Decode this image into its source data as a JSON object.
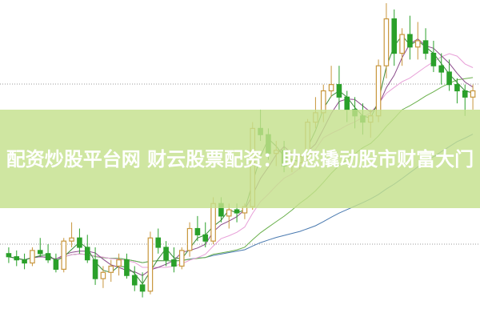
{
  "title": "配资炒股平台网 财云股票配资：助您撬动股市财富大门",
  "colors": {
    "up": "#c8963c",
    "down": "#2aa02a",
    "ma5": "#3a8a3a",
    "ma10": "#8a4a8a",
    "ma20": "#e8a0d8",
    "ma60": "#6ab04c",
    "ma120": "#4a7ab0",
    "grid": "#999999",
    "banner": "#c4e08c"
  },
  "chart_data": {
    "type": "candlestick",
    "grid": true,
    "ylim": [
      0,
      100
    ],
    "candles": [
      [
        20,
        22,
        17,
        19
      ],
      [
        19,
        21,
        16,
        18
      ],
      [
        18,
        20,
        15,
        17
      ],
      [
        17,
        22,
        16,
        21
      ],
      [
        21,
        25,
        19,
        20
      ],
      [
        20,
        23,
        17,
        18
      ],
      [
        18,
        20,
        14,
        15
      ],
      [
        15,
        25,
        14,
        24
      ],
      [
        24,
        30,
        22,
        25
      ],
      [
        25,
        28,
        20,
        22
      ],
      [
        22,
        26,
        17,
        18
      ],
      [
        18,
        22,
        10,
        12
      ],
      [
        12,
        16,
        9,
        14
      ],
      [
        14,
        18,
        11,
        16
      ],
      [
        16,
        20,
        13,
        18
      ],
      [
        18,
        20,
        12,
        13
      ],
      [
        13,
        16,
        8,
        10
      ],
      [
        10,
        14,
        6,
        8
      ],
      [
        8,
        27,
        7,
        25
      ],
      [
        25,
        28,
        20,
        22
      ],
      [
        22,
        24,
        16,
        18
      ],
      [
        18,
        22,
        14,
        16
      ],
      [
        16,
        22,
        15,
        21
      ],
      [
        21,
        30,
        19,
        28
      ],
      [
        28,
        32,
        24,
        26
      ],
      [
        26,
        30,
        22,
        24
      ],
      [
        24,
        38,
        23,
        36
      ],
      [
        36,
        38,
        30,
        32
      ],
      [
        32,
        36,
        28,
        34
      ],
      [
        34,
        36,
        30,
        33
      ],
      [
        33,
        36,
        31,
        35
      ],
      [
        35,
        62,
        34,
        60
      ],
      [
        60,
        66,
        56,
        58
      ],
      [
        58,
        60,
        50,
        52
      ],
      [
        52,
        56,
        48,
        53
      ],
      [
        53,
        56,
        46,
        48
      ],
      [
        48,
        50,
        46,
        49
      ],
      [
        49,
        52,
        47,
        51
      ],
      [
        51,
        63,
        50,
        62
      ],
      [
        62,
        70,
        60,
        65
      ],
      [
        65,
        74,
        62,
        72
      ],
      [
        72,
        80,
        70,
        74
      ],
      [
        74,
        80,
        66,
        70
      ],
      [
        70,
        72,
        62,
        66
      ],
      [
        66,
        70,
        60,
        64
      ],
      [
        64,
        68,
        58,
        62
      ],
      [
        62,
        66,
        57,
        64
      ],
      [
        64,
        82,
        62,
        80
      ],
      [
        80,
        100,
        76,
        95
      ],
      [
        95,
        98,
        80,
        84
      ],
      [
        84,
        92,
        80,
        90
      ],
      [
        90,
        96,
        82,
        86
      ],
      [
        86,
        94,
        82,
        88
      ],
      [
        88,
        92,
        82,
        84
      ],
      [
        84,
        88,
        78,
        80
      ],
      [
        80,
        84,
        74,
        78
      ],
      [
        78,
        82,
        72,
        74
      ],
      [
        74,
        76,
        68,
        72
      ],
      [
        72,
        74,
        64,
        70
      ],
      [
        70,
        74,
        66,
        72
      ]
    ]
  }
}
